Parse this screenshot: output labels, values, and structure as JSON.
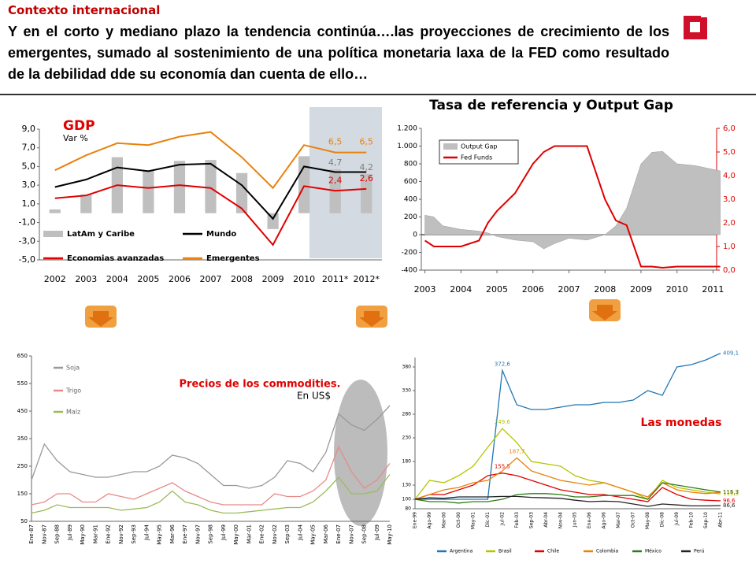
{
  "header": {
    "section": "Contexto internacional",
    "title": "Y en el corto y mediano plazo la tendencia continúa….las proyecciones de crecimiento de los emergentes, sumado al sostenimiento de una política monetaria laxa de la FED como resultado de la debilidad dde su economía dan cuenta de ello…"
  },
  "chart_data": [
    {
      "type": "bar",
      "title": "GDP",
      "subtitle": "Var %",
      "categories": [
        "2002",
        "2003",
        "2004",
        "2005",
        "2006",
        "2007",
        "2008",
        "2009",
        "2010",
        "2011*",
        "2012*"
      ],
      "ylim": [
        -5,
        9
      ],
      "yticks": [
        {
          "value": 9,
          "label": "9,0"
        },
        {
          "value": 7,
          "label": "7,0"
        },
        {
          "value": 5,
          "label": "5,0"
        },
        {
          "value": 3,
          "label": "3,0"
        },
        {
          "value": 1,
          "label": "1,0"
        },
        {
          "value": -1,
          "label": "-1,0"
        },
        {
          "value": -3,
          "label": "-3,0"
        },
        {
          "value": -5,
          "label": "-5,0"
        }
      ],
      "series": [
        {
          "name": "LatAm y Caribe",
          "type": "bar",
          "color": "#bfbfbf",
          "values": [
            0.4,
            2.0,
            6.0,
            4.6,
            5.6,
            5.7,
            4.3,
            -1.7,
            6.1,
            4.7,
            4.2
          ],
          "value_labels": [
            null,
            null,
            null,
            null,
            null,
            null,
            null,
            null,
            null,
            "4,7",
            "4,2"
          ]
        },
        {
          "name": "Mundo",
          "type": "line",
          "color": "#000000",
          "values": [
            2.8,
            3.6,
            4.9,
            4.5,
            5.2,
            5.3,
            3.0,
            -0.6,
            5.0,
            4.4,
            4.4
          ]
        },
        {
          "name": "Economias avanzadas",
          "type": "line",
          "color": "#e00000",
          "values": [
            1.6,
            1.9,
            3.0,
            2.7,
            3.0,
            2.7,
            0.5,
            -3.4,
            2.9,
            2.4,
            2.6
          ],
          "value_labels": [
            null,
            null,
            null,
            null,
            null,
            null,
            null,
            null,
            null,
            "2,4",
            "2,6"
          ]
        },
        {
          "name": "Emergentes",
          "type": "line",
          "color": "#e8820c",
          "values": [
            4.6,
            6.2,
            7.5,
            7.3,
            8.2,
            8.7,
            6.0,
            2.7,
            7.3,
            6.5,
            6.5
          ],
          "value_labels": [
            null,
            null,
            null,
            null,
            null,
            null,
            null,
            null,
            null,
            "6,5",
            "6,5"
          ]
        }
      ]
    },
    {
      "type": "line",
      "title": "Tasa de referencia y Output Gap",
      "x": [
        2003,
        2003.25,
        2003.5,
        2004,
        2004.5,
        2004.75,
        2005,
        2005.5,
        2006,
        2006.3,
        2006.6,
        2007,
        2007.5,
        2008,
        2008.3,
        2008.6,
        2009,
        2009.3,
        2009.6,
        2010,
        2010.5,
        2011.2
      ],
      "xlim": [
        2002.9,
        2011.1
      ],
      "xticks": [
        2003,
        2004,
        2005,
        2006,
        2007,
        2008,
        2009,
        2010,
        2011
      ],
      "ylim": [
        -400,
        1200
      ],
      "yticks": [
        {
          "value": 1200,
          "label": "1.200"
        },
        {
          "value": 1000,
          "label": "1.000"
        },
        800,
        600,
        400,
        200,
        0,
        -200,
        -400
      ],
      "y2lim": [
        0,
        6
      ],
      "y2ticks": [
        {
          "value": 6,
          "label": "6,0"
        },
        {
          "value": 5,
          "label": "5,0"
        },
        {
          "value": 4,
          "label": "4,0"
        },
        {
          "value": 3,
          "label": "3,0"
        },
        {
          "value": 2,
          "label": "2,0"
        },
        {
          "value": 1,
          "label": "1,0"
        },
        {
          "value": 0,
          "label": "0,0"
        }
      ],
      "series": [
        {
          "name": "Output Gap",
          "type": "area",
          "color": "#bfbfbf",
          "values": [
            220,
            200,
            100,
            60,
            40,
            20,
            -20,
            -60,
            -80,
            -160,
            -100,
            -40,
            -60,
            0,
            100,
            300,
            800,
            930,
            940,
            800,
            780,
            720
          ]
        },
        {
          "name": "Fed Funds",
          "type": "line",
          "axis": "y2",
          "color": "#e00000",
          "values": [
            1.25,
            1.0,
            1.0,
            1.0,
            1.25,
            2.0,
            2.5,
            3.25,
            4.5,
            5.0,
            5.25,
            5.25,
            5.25,
            3.0,
            2.1,
            1.9,
            0.15,
            0.15,
            0.1,
            0.15,
            0.15,
            0.15
          ]
        }
      ]
    },
    {
      "type": "line",
      "title": "Precios de los commodities.",
      "subtitle": "En US$",
      "categories": [
        "Ene-87",
        "Nov-87",
        "Sep-88",
        "Jul-89",
        "May-90",
        "Mar-91",
        "Ene-92",
        "Nov-92",
        "Sep-93",
        "Jul-94",
        "May-95",
        "Mar-96",
        "Ene-97",
        "Nov-97",
        "Sep-98",
        "Jul-99",
        "May-00",
        "Mar-01",
        "Ene-02",
        "Nov-02",
        "Sep-03",
        "Jul-04",
        "May-05",
        "Mar-06",
        "Ene-07",
        "Nov-07",
        "Sep-08",
        "Jul-09",
        "May-10"
      ],
      "ylim": [
        50,
        650
      ],
      "yticks": [
        650,
        550,
        450,
        350,
        250,
        150,
        50
      ],
      "series": [
        {
          "name": "Soja",
          "color": "#999999",
          "values": [
            200,
            330,
            270,
            230,
            220,
            210,
            210,
            220,
            230,
            230,
            250,
            290,
            280,
            260,
            220,
            180,
            180,
            170,
            180,
            210,
            270,
            260,
            230,
            300,
            440,
            400,
            380,
            420,
            470
          ]
        },
        {
          "name": "Trigo",
          "color": "#e88a8a",
          "values": [
            110,
            120,
            150,
            150,
            120,
            120,
            150,
            140,
            130,
            150,
            170,
            190,
            160,
            140,
            120,
            110,
            110,
            110,
            110,
            150,
            140,
            140,
            160,
            200,
            320,
            230,
            170,
            200,
            260
          ]
        },
        {
          "name": "Maíz",
          "color": "#9bbb59",
          "values": [
            80,
            90,
            110,
            100,
            100,
            100,
            100,
            90,
            95,
            100,
            120,
            160,
            120,
            110,
            90,
            80,
            80,
            85,
            90,
            95,
            100,
            100,
            120,
            160,
            210,
            150,
            150,
            160,
            220
          ]
        }
      ]
    },
    {
      "type": "line",
      "title": "Las monedas",
      "categories": [
        "Ene-99",
        "Ago-99",
        "Mar-00",
        "Oct-00",
        "May-01",
        "Dic-01",
        "Jul-02",
        "Feb-03",
        "Sep-03",
        "Abr-04",
        "Nov-04",
        "Jun-05",
        "Ene-06",
        "Ago-06",
        "Mar-07",
        "Oct-07",
        "May-08",
        "Dic-08",
        "Jul-09",
        "Feb-10",
        "Sep-10",
        "Abr-11"
      ],
      "ylim": [
        80,
        400
      ],
      "yticks": [
        380,
        330,
        280,
        230,
        180,
        130,
        100,
        80
      ],
      "series": [
        {
          "name": "Argentina",
          "color": "#1f77b4",
          "values": [
            100,
            100,
            100,
            100,
            100,
            100,
            372.6,
            300,
            290,
            290,
            295,
            300,
            300,
            305,
            305,
            310,
            330,
            320,
            380,
            385,
            395,
            409.1
          ],
          "value_labels": [
            null,
            null,
            null,
            null,
            null,
            null,
            "372,6",
            null,
            null,
            null,
            null,
            null,
            null,
            null,
            null,
            null,
            null,
            null,
            null,
            null,
            null,
            "409,1"
          ]
        },
        {
          "name": "Brasil",
          "color": "#b5c400",
          "values": [
            100,
            140,
            135,
            150,
            170,
            210,
            249.6,
            220,
            180,
            175,
            170,
            150,
            140,
            135,
            125,
            115,
            100,
            140,
            125,
            120,
            115,
            111.3
          ],
          "value_labels": [
            null,
            null,
            null,
            null,
            null,
            null,
            "249,6",
            null,
            null,
            null,
            null,
            null,
            null,
            null,
            null,
            null,
            null,
            null,
            null,
            null,
            null,
            "111,3"
          ]
        },
        {
          "name": "Chile",
          "color": "#e00000",
          "values": [
            100,
            110,
            110,
            120,
            130,
            150,
            155.5,
            150,
            140,
            130,
            120,
            115,
            110,
            110,
            105,
            100,
            95,
            125,
            110,
            100,
            98,
            96.6
          ],
          "value_labels": [
            null,
            null,
            null,
            null,
            null,
            null,
            "155,5",
            null,
            null,
            null,
            null,
            null,
            null,
            null,
            null,
            null,
            null,
            null,
            null,
            null,
            null,
            "96,6"
          ]
        },
        {
          "name": "Colombia",
          "color": "#e8820c",
          "values": [
            100,
            110,
            120,
            125,
            135,
            140,
            160,
            187.7,
            160,
            150,
            140,
            135,
            130,
            135,
            125,
            115,
            105,
            135,
            120,
            115,
            112,
            114.7
          ],
          "value_labels": [
            null,
            null,
            null,
            null,
            null,
            null,
            null,
            "187,7",
            null,
            null,
            null,
            null,
            null,
            null,
            null,
            null,
            null,
            null,
            null,
            null,
            null,
            "114,7"
          ]
        },
        {
          "name": "México",
          "color": "#2e7d1a",
          "values": [
            100,
            95,
            95,
            92,
            95,
            95,
            100,
            110,
            112,
            112,
            110,
            105,
            105,
            108,
            108,
            108,
            100,
            135,
            130,
            125,
            120,
            115.3
          ],
          "value_labels": [
            null,
            null,
            null,
            null,
            null,
            null,
            null,
            null,
            null,
            null,
            null,
            null,
            null,
            null,
            null,
            null,
            null,
            null,
            null,
            null,
            null,
            "115,3"
          ]
        },
        {
          "name": "Perú",
          "color": "#222222",
          "values": [
            100,
            103,
            102,
            105,
            105,
            105,
            106,
            106,
            104,
            103,
            102,
            98,
            95,
            96,
            95,
            90,
            85,
            90,
            88,
            86,
            86,
            86.6
          ],
          "value_labels": [
            null,
            null,
            null,
            null,
            null,
            null,
            null,
            null,
            null,
            null,
            null,
            null,
            null,
            null,
            null,
            null,
            null,
            null,
            null,
            null,
            null,
            "86,6"
          ]
        }
      ]
    }
  ]
}
